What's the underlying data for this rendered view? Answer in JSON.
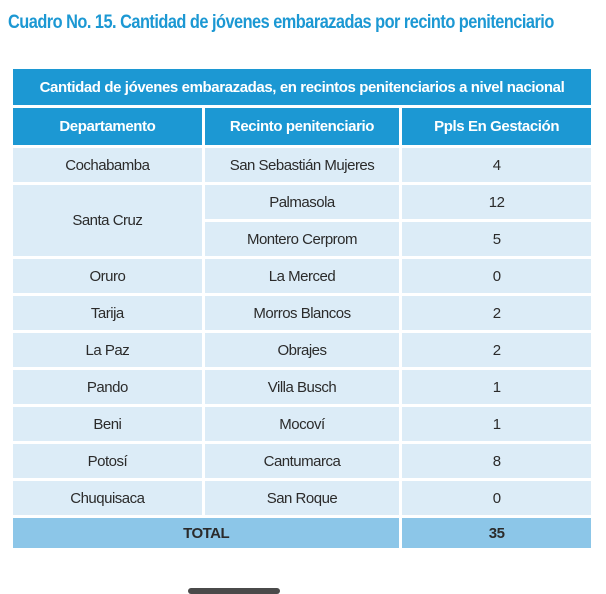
{
  "caption": "Cuadro No. 15.  Cantidad de jóvenes embarazadas por recinto penitenciario",
  "table": {
    "title": "Cantidad de jóvenes embarazadas, en recintos penitenciarios a nivel nacional",
    "headers": [
      "Departamento",
      "Recinto penitenciario",
      "Ppls En Gestación"
    ],
    "rows": [
      {
        "departamento": "Cochabamba",
        "recinto": "San Sebastián Mujeres",
        "ppls": "4"
      },
      {
        "departamento": "Santa Cruz",
        "recinto": "Palmasola",
        "ppls": "12"
      },
      {
        "departamento": "",
        "recinto": "Montero Cerprom",
        "ppls": "5"
      },
      {
        "departamento": "Oruro",
        "recinto": "La Merced",
        "ppls": "0"
      },
      {
        "departamento": "Tarija",
        "recinto": "Morros Blancos",
        "ppls": "2"
      },
      {
        "departamento": "La Paz",
        "recinto": "Obrajes",
        "ppls": "2"
      },
      {
        "departamento": "Pando",
        "recinto": "Villa Busch",
        "ppls": "1"
      },
      {
        "departamento": "Beni",
        "recinto": "Mocoví",
        "ppls": "1"
      },
      {
        "departamento": "Potosí",
        "recinto": "Cantumarca",
        "ppls": "8"
      },
      {
        "departamento": "Chuquisaca",
        "recinto": "San Roque",
        "ppls": "0"
      }
    ],
    "total_label": "TOTAL",
    "total_value": "35"
  },
  "colors": {
    "accent": "#1c98d3",
    "row_fill": "#dcecf7",
    "total_fill": "#8cc6e8"
  }
}
